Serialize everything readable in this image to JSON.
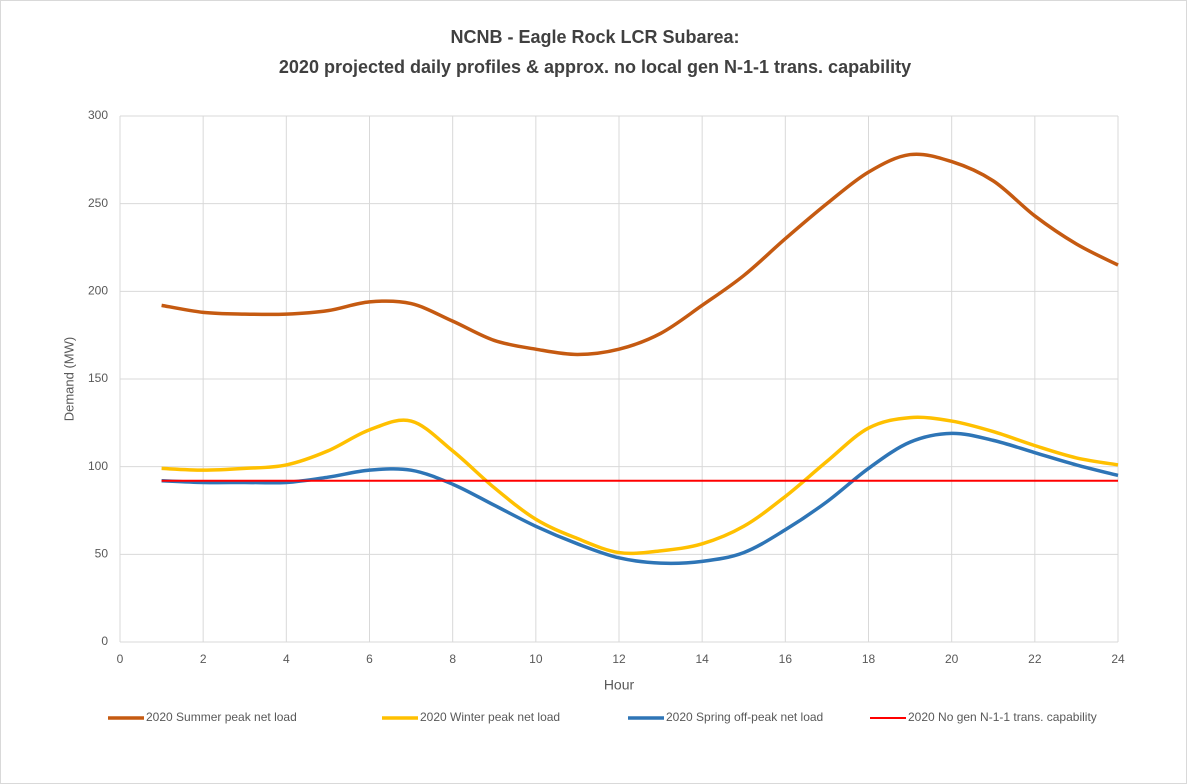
{
  "chart_data": {
    "type": "line",
    "title": "NCNB - Eagle Rock LCR Subarea:",
    "subtitle": "2020 projected daily profiles & approx. no local gen N-1-1 trans. capability",
    "x_label": "Hour",
    "y_label": "Demand (MW)",
    "x": [
      1,
      2,
      3,
      4,
      5,
      6,
      7,
      8,
      9,
      10,
      11,
      12,
      13,
      14,
      15,
      16,
      17,
      18,
      19,
      20,
      21,
      22,
      23,
      24
    ],
    "series": [
      {
        "name": "2020 Summer peak net load",
        "color": "#c55a11",
        "values": [
          192,
          188,
          187,
          187,
          189,
          194,
          193,
          183,
          172,
          167,
          164,
          167,
          176,
          192,
          209,
          230,
          250,
          268,
          278,
          274,
          263,
          243,
          227,
          215
        ]
      },
      {
        "name": "2020 Winter peak net load",
        "color": "#ffc000",
        "values": [
          99,
          98,
          99,
          101,
          109,
          121,
          126,
          109,
          88,
          70,
          59,
          51,
          52,
          56,
          66,
          83,
          103,
          122,
          128,
          126,
          120,
          112,
          105,
          101
        ]
      },
      {
        "name": "2020 Spring off-peak net load",
        "color": "#2e75b6",
        "values": [
          92,
          91,
          91,
          91,
          94,
          98,
          98,
          90,
          78,
          66,
          56,
          48,
          45,
          46,
          51,
          64,
          80,
          99,
          114,
          119,
          115,
          108,
          101,
          95
        ]
      },
      {
        "name": "2020 No gen N-1-1 trans. capability",
        "color": "#ff0000",
        "values": [
          92,
          92,
          92,
          92,
          92,
          92,
          92,
          92,
          92,
          92,
          92,
          92,
          92,
          92,
          92,
          92,
          92,
          92,
          92,
          92,
          92,
          92,
          92,
          92
        ]
      }
    ],
    "xlim": [
      0,
      24
    ],
    "xticks": [
      0,
      2,
      4,
      6,
      8,
      10,
      12,
      14,
      16,
      18,
      20,
      22,
      24
    ],
    "ylim": [
      0,
      300
    ],
    "yticks": [
      0,
      50,
      100,
      150,
      200,
      250,
      300
    ],
    "grid": true,
    "legend": "bottom"
  }
}
